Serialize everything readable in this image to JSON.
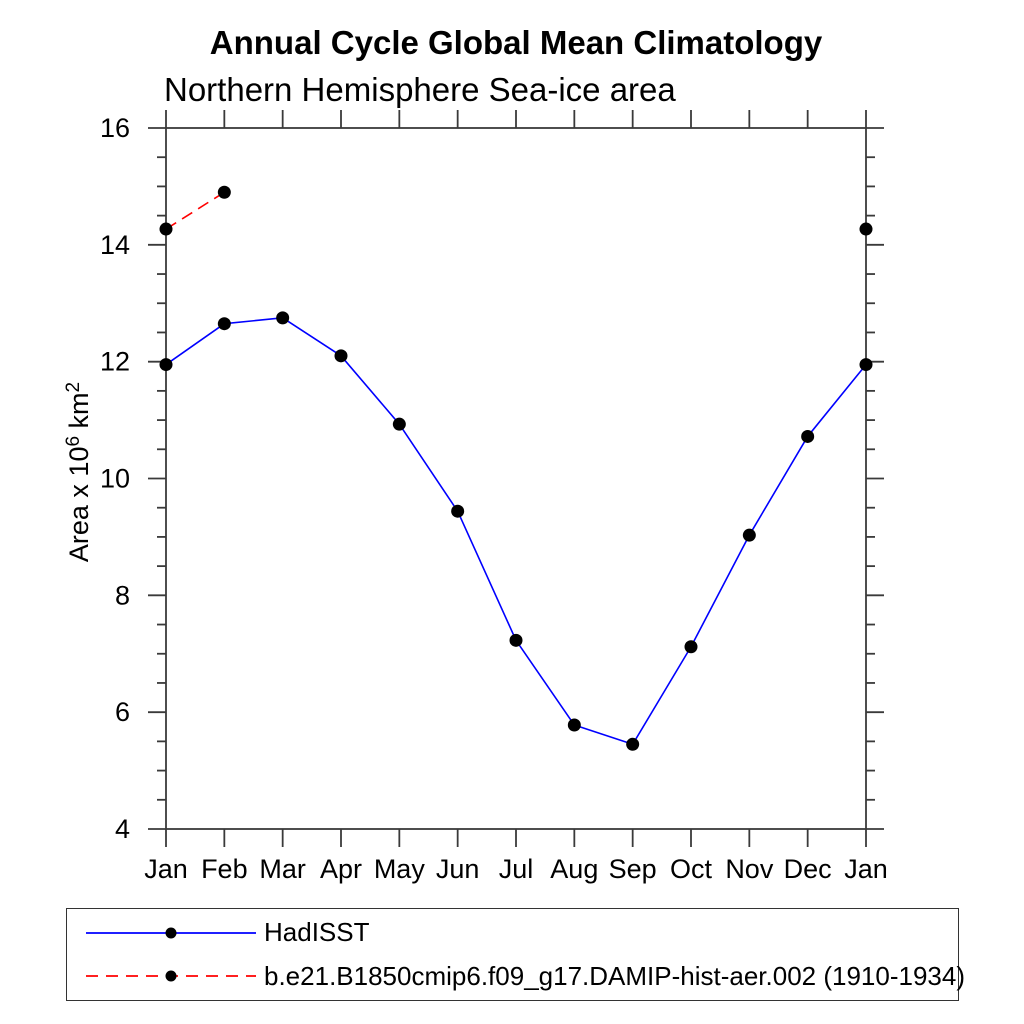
{
  "chart_data": {
    "type": "line",
    "title": "Annual Cycle Global Mean Climatology",
    "subtitle": "Northern Hemisphere Sea-ice area",
    "xlabel": "",
    "ylabel": "Area x 10^6 km^2",
    "ylabel_parts": [
      {
        "t": "Area x 10",
        "sup": false
      },
      {
        "t": "6",
        "sup": true
      },
      {
        "t": " km",
        "sup": false
      },
      {
        "t": "2",
        "sup": true
      }
    ],
    "categories": [
      "Jan",
      "Feb",
      "Mar",
      "Apr",
      "May",
      "Jun",
      "Jul",
      "Aug",
      "Sep",
      "Oct",
      "Nov",
      "Dec",
      "Jan"
    ],
    "ylim": [
      4,
      16
    ],
    "ytick_major": [
      4,
      6,
      8,
      10,
      12,
      14,
      16
    ],
    "ytick_minor_step": 0.5,
    "grid": false,
    "legend_position": "bottom",
    "marker": "filled-circle",
    "marker_color": "#000000",
    "series": [
      {
        "name": "HadISST",
        "color": "#0000ff",
        "style": "solid",
        "values": [
          11.95,
          12.65,
          12.75,
          12.1,
          10.93,
          9.44,
          7.23,
          5.78,
          5.45,
          7.12,
          9.03,
          10.72,
          11.95
        ]
      },
      {
        "name": "b.e21.B1850cmip6.f09_g17.DAMIP-hist-aer.002 (1910-1934)",
        "color": "#ff0000",
        "style": "dashed",
        "values": [
          14.27,
          14.9,
          null,
          null,
          null,
          null,
          null,
          null,
          null,
          null,
          null,
          null,
          14.27
        ]
      }
    ]
  }
}
